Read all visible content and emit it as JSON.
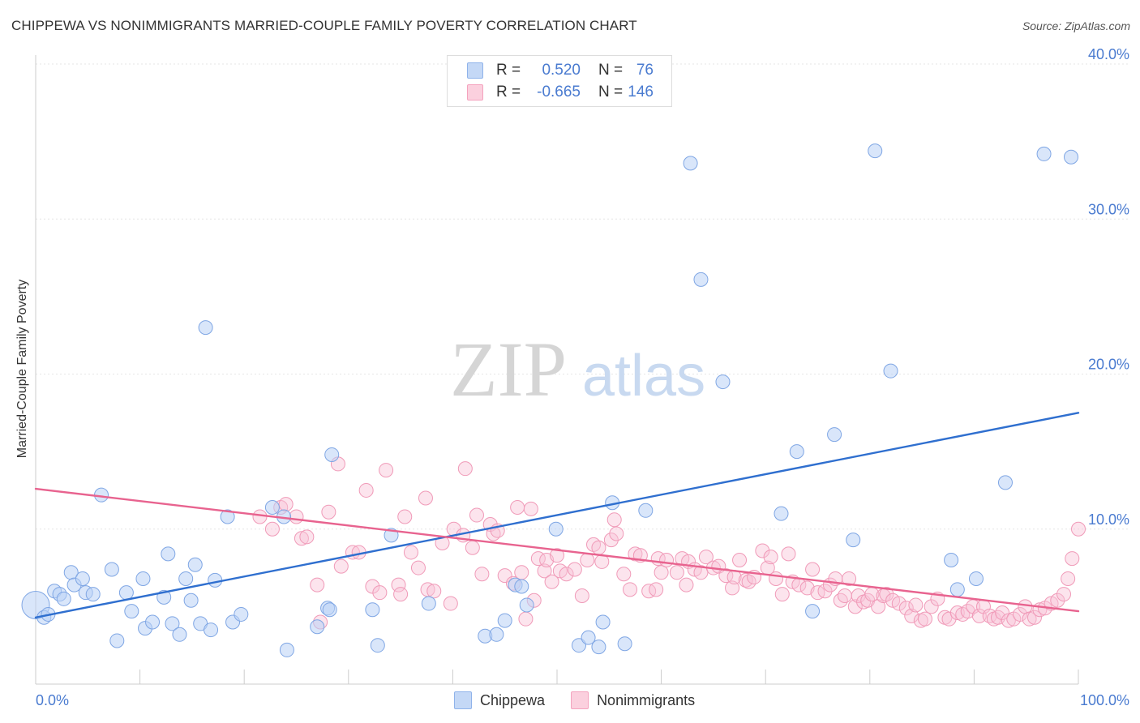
{
  "title": "CHIPPEWA VS NONIMMIGRANTS MARRIED-COUPLE FAMILY POVERTY CORRELATION CHART",
  "source": "Source: ZipAtlas.com",
  "watermark": {
    "zip": "ZIP",
    "atlas": "atlas"
  },
  "legend": {
    "rows": [
      {
        "r_label": "R =",
        "r_value": "0.520",
        "n_label": "N =",
        "n_value": "76"
      },
      {
        "r_label": "R =",
        "r_value": "-0.665",
        "n_label": "N =",
        "n_value": "146"
      }
    ]
  },
  "chart_data": {
    "type": "scatter",
    "title": "CHIPPEWA VS NONIMMIGRANTS MARRIED-COUPLE FAMILY POVERTY CORRELATION CHART",
    "xlabel": "",
    "ylabel": "Married-Couple Family Poverty",
    "xlim": [
      0,
      100
    ],
    "ylim": [
      0,
      40
    ],
    "x_tick_labels": [
      "0.0%",
      "100.0%"
    ],
    "y_ticks": [
      10,
      20,
      30,
      40
    ],
    "y_tick_labels": [
      "10.0%",
      "20.0%",
      "30.0%",
      "40.0%"
    ],
    "grid": true,
    "legend_position": "top-center",
    "series": [
      {
        "name": "Chippewa",
        "color": "#8fb3ea",
        "line_color": "#2f6fcf",
        "r": 0.52,
        "n": 76,
        "trend": {
          "x": [
            0,
            100
          ],
          "y": [
            4.3,
            17.5
          ]
        },
        "points": [
          [
            0,
            5.1
          ],
          [
            0.8,
            4.3
          ],
          [
            1.2,
            4.5
          ],
          [
            1.8,
            6.0
          ],
          [
            2.3,
            5.8
          ],
          [
            2.7,
            5.5
          ],
          [
            3.4,
            7.2
          ],
          [
            3.7,
            6.4
          ],
          [
            4.5,
            6.8
          ],
          [
            4.8,
            5.9
          ],
          [
            5.5,
            5.8
          ],
          [
            6.3,
            12.2
          ],
          [
            7.3,
            7.4
          ],
          [
            7.8,
            2.8
          ],
          [
            8.7,
            5.9
          ],
          [
            9.2,
            4.7
          ],
          [
            10.3,
            6.8
          ],
          [
            10.5,
            3.6
          ],
          [
            11.2,
            4.0
          ],
          [
            12.3,
            5.6
          ],
          [
            12.7,
            8.4
          ],
          [
            13.1,
            3.9
          ],
          [
            13.8,
            3.2
          ],
          [
            14.4,
            6.8
          ],
          [
            14.9,
            5.4
          ],
          [
            15.3,
            7.7
          ],
          [
            15.8,
            3.9
          ],
          [
            16.3,
            23.0
          ],
          [
            16.8,
            3.5
          ],
          [
            17.2,
            6.7
          ],
          [
            18.4,
            10.8
          ],
          [
            18.9,
            4.0
          ],
          [
            19.7,
            4.5
          ],
          [
            22.7,
            11.4
          ],
          [
            23.8,
            10.8
          ],
          [
            24.1,
            2.2
          ],
          [
            27.0,
            3.7
          ],
          [
            28.0,
            4.9
          ],
          [
            28.2,
            4.8
          ],
          [
            28.4,
            14.8
          ],
          [
            32.3,
            4.8
          ],
          [
            32.8,
            2.5
          ],
          [
            34.1,
            9.6
          ],
          [
            37.7,
            5.2
          ],
          [
            43.1,
            3.1
          ],
          [
            44.2,
            3.2
          ],
          [
            45.0,
            4.1
          ],
          [
            46.0,
            6.4
          ],
          [
            46.6,
            6.3
          ],
          [
            47.1,
            5.1
          ],
          [
            49.9,
            10.0
          ],
          [
            52.1,
            2.5
          ],
          [
            53.0,
            3.0
          ],
          [
            54.0,
            2.4
          ],
          [
            54.4,
            4.0
          ],
          [
            55.3,
            11.7
          ],
          [
            56.5,
            2.6
          ],
          [
            58.5,
            11.2
          ],
          [
            62.8,
            33.6
          ],
          [
            63.8,
            26.1
          ],
          [
            65.9,
            19.5
          ],
          [
            71.5,
            11.0
          ],
          [
            73.0,
            15.0
          ],
          [
            74.5,
            4.7
          ],
          [
            76.6,
            16.1
          ],
          [
            78.4,
            9.3
          ],
          [
            80.5,
            34.4
          ],
          [
            82.0,
            20.2
          ],
          [
            87.8,
            8.0
          ],
          [
            88.4,
            6.1
          ],
          [
            90.2,
            6.8
          ],
          [
            93.0,
            13.0
          ],
          [
            96.7,
            34.2
          ],
          [
            99.3,
            34.0
          ]
        ]
      },
      {
        "name": "Nonimmigrants",
        "color": "#f4a3be",
        "line_color": "#e8638f",
        "r": -0.665,
        "n": 146,
        "trend": {
          "x": [
            0,
            100
          ],
          "y": [
            12.6,
            4.7
          ]
        },
        "points": [
          [
            21.5,
            10.8
          ],
          [
            22.7,
            10.0
          ],
          [
            23.5,
            11.4
          ],
          [
            24.0,
            11.6
          ],
          [
            25.0,
            10.8
          ],
          [
            25.5,
            9.4
          ],
          [
            26.0,
            9.5
          ],
          [
            27.0,
            6.4
          ],
          [
            27.3,
            4.0
          ],
          [
            28.1,
            11.1
          ],
          [
            29.0,
            14.2
          ],
          [
            29.3,
            7.6
          ],
          [
            30.4,
            8.5
          ],
          [
            31.0,
            8.5
          ],
          [
            31.7,
            12.5
          ],
          [
            32.3,
            6.3
          ],
          [
            33.0,
            5.9
          ],
          [
            33.6,
            13.8
          ],
          [
            34.8,
            6.4
          ],
          [
            35.0,
            5.8
          ],
          [
            35.4,
            10.8
          ],
          [
            36.0,
            8.5
          ],
          [
            36.7,
            7.5
          ],
          [
            37.4,
            12.0
          ],
          [
            37.6,
            6.1
          ],
          [
            38.2,
            6.0
          ],
          [
            39.0,
            9.1
          ],
          [
            39.8,
            5.2
          ],
          [
            40.1,
            10.0
          ],
          [
            41.0,
            9.6
          ],
          [
            41.2,
            13.9
          ],
          [
            41.9,
            8.8
          ],
          [
            42.3,
            10.9
          ],
          [
            42.8,
            7.1
          ],
          [
            43.6,
            10.3
          ],
          [
            43.9,
            9.7
          ],
          [
            44.3,
            9.9
          ],
          [
            45.0,
            7.0
          ],
          [
            45.8,
            6.5
          ],
          [
            46.2,
            11.4
          ],
          [
            46.6,
            7.2
          ],
          [
            47.0,
            4.2
          ],
          [
            47.5,
            11.3
          ],
          [
            47.8,
            5.4
          ],
          [
            48.2,
            8.1
          ],
          [
            48.8,
            7.3
          ],
          [
            49.0,
            8.0
          ],
          [
            49.5,
            6.6
          ],
          [
            50.0,
            8.3
          ],
          [
            50.3,
            7.3
          ],
          [
            50.9,
            7.1
          ],
          [
            51.7,
            7.4
          ],
          [
            52.4,
            5.7
          ],
          [
            52.9,
            8.0
          ],
          [
            53.5,
            9.0
          ],
          [
            54.0,
            8.8
          ],
          [
            54.3,
            7.9
          ],
          [
            55.2,
            9.3
          ],
          [
            55.5,
            10.6
          ],
          [
            55.7,
            9.7
          ],
          [
            56.4,
            7.1
          ],
          [
            57.0,
            6.1
          ],
          [
            57.5,
            8.4
          ],
          [
            58.0,
            8.3
          ],
          [
            58.8,
            6.0
          ],
          [
            59.5,
            6.1
          ],
          [
            59.7,
            8.1
          ],
          [
            60.0,
            7.2
          ],
          [
            60.5,
            8.0
          ],
          [
            61.5,
            7.2
          ],
          [
            62.0,
            8.1
          ],
          [
            62.4,
            6.4
          ],
          [
            62.6,
            7.9
          ],
          [
            63.2,
            7.4
          ],
          [
            63.8,
            7.2
          ],
          [
            64.3,
            8.2
          ],
          [
            65.0,
            7.5
          ],
          [
            65.5,
            7.6
          ],
          [
            66.2,
            7.0
          ],
          [
            66.8,
            6.2
          ],
          [
            67.0,
            6.9
          ],
          [
            67.5,
            8.0
          ],
          [
            68.1,
            6.7
          ],
          [
            68.4,
            6.6
          ],
          [
            68.9,
            6.9
          ],
          [
            69.7,
            8.6
          ],
          [
            70.2,
            7.5
          ],
          [
            70.5,
            8.2
          ],
          [
            71.0,
            6.8
          ],
          [
            71.6,
            5.8
          ],
          [
            72.2,
            8.4
          ],
          [
            72.6,
            6.6
          ],
          [
            73.2,
            6.4
          ],
          [
            74.0,
            6.2
          ],
          [
            74.5,
            7.4
          ],
          [
            75.0,
            5.9
          ],
          [
            75.7,
            6.0
          ],
          [
            76.2,
            6.4
          ],
          [
            76.7,
            6.8
          ],
          [
            77.2,
            5.4
          ],
          [
            77.6,
            5.7
          ],
          [
            78.0,
            6.8
          ],
          [
            78.6,
            5.0
          ],
          [
            78.9,
            5.7
          ],
          [
            79.4,
            5.3
          ],
          [
            79.8,
            5.4
          ],
          [
            80.2,
            5.8
          ],
          [
            80.8,
            5.0
          ],
          [
            81.3,
            5.7
          ],
          [
            81.6,
            5.8
          ],
          [
            82.2,
            5.4
          ],
          [
            82.8,
            5.2
          ],
          [
            83.5,
            4.9
          ],
          [
            84.0,
            4.4
          ],
          [
            84.4,
            5.1
          ],
          [
            84.9,
            4.1
          ],
          [
            85.3,
            4.2
          ],
          [
            85.9,
            5.0
          ],
          [
            86.5,
            5.5
          ],
          [
            87.2,
            4.3
          ],
          [
            87.6,
            4.2
          ],
          [
            88.4,
            4.6
          ],
          [
            88.9,
            4.5
          ],
          [
            89.4,
            4.7
          ],
          [
            89.9,
            5.0
          ],
          [
            90.5,
            4.4
          ],
          [
            90.9,
            5.0
          ],
          [
            91.5,
            4.4
          ],
          [
            91.9,
            4.2
          ],
          [
            92.3,
            4.3
          ],
          [
            92.7,
            4.6
          ],
          [
            93.3,
            4.1
          ],
          [
            93.8,
            4.2
          ],
          [
            94.4,
            4.5
          ],
          [
            94.9,
            5.0
          ],
          [
            95.3,
            4.2
          ],
          [
            95.8,
            4.3
          ],
          [
            96.3,
            4.8
          ],
          [
            96.8,
            4.9
          ],
          [
            97.4,
            5.2
          ],
          [
            98.0,
            5.4
          ],
          [
            98.6,
            5.8
          ],
          [
            99.0,
            6.8
          ],
          [
            99.4,
            8.1
          ],
          [
            100.0,
            10.0
          ]
        ]
      }
    ]
  }
}
